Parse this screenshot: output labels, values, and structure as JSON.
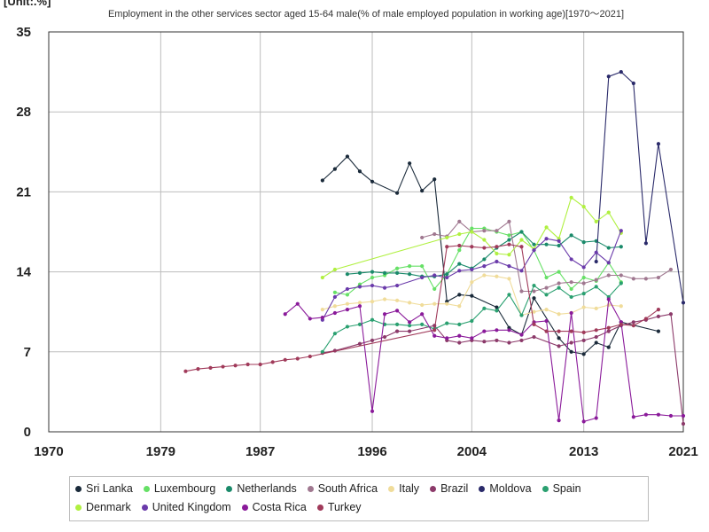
{
  "chart_data": {
    "type": "line",
    "title": "Employment in the other services sector aged 15-64 male(% of male employed population in working age)[1970〜2021]",
    "unit_label": "[Unit:.%]",
    "xlim": [
      1970,
      2021
    ],
    "ylim": [
      0,
      35
    ],
    "x_ticks": [
      "1970",
      "1979",
      "1987",
      "1996",
      "2004",
      "2013",
      "2021"
    ],
    "y_ticks": [
      "0",
      "7",
      "14",
      "21",
      "28",
      "35"
    ],
    "grid": true,
    "legend_position": "bottom",
    "series": [
      {
        "name": "Sri Lanka",
        "color": "#1a2a3a",
        "points": [
          [
            1992,
            22.0
          ],
          [
            1993,
            23.0
          ],
          [
            1994,
            24.1
          ],
          [
            1995,
            22.8
          ],
          [
            1996,
            21.9
          ],
          [
            1998,
            20.9
          ],
          [
            1999,
            23.5
          ],
          [
            2000,
            21.1
          ],
          [
            2001,
            22.1
          ],
          [
            2002,
            11.4
          ],
          [
            2003,
            12.0
          ],
          [
            2004,
            11.9
          ],
          [
            2006,
            10.9
          ],
          [
            2007,
            9.1
          ],
          [
            2008,
            8.5
          ],
          [
            2009,
            11.7
          ],
          [
            2011,
            8.2
          ],
          [
            2012,
            7.0
          ],
          [
            2013,
            6.8
          ],
          [
            2014,
            7.8
          ],
          [
            2015,
            7.4
          ],
          [
            2016,
            9.6
          ],
          [
            2019,
            8.8
          ]
        ]
      },
      {
        "name": "Luxembourg",
        "color": "#66e066",
        "points": [
          [
            1993,
            12.2
          ],
          [
            1994,
            12.0
          ],
          [
            1995,
            12.9
          ],
          [
            1996,
            13.5
          ],
          [
            1997,
            13.7
          ],
          [
            1998,
            14.3
          ],
          [
            1999,
            14.5
          ],
          [
            2000,
            14.5
          ],
          [
            2001,
            12.5
          ],
          [
            2002,
            13.8
          ],
          [
            2003,
            15.9
          ],
          [
            2004,
            17.8
          ],
          [
            2005,
            17.8
          ],
          [
            2006,
            17.5
          ],
          [
            2007,
            17.2
          ],
          [
            2008,
            17.5
          ],
          [
            2009,
            15.9
          ],
          [
            2010,
            13.5
          ],
          [
            2011,
            14.0
          ],
          [
            2012,
            12.5
          ],
          [
            2013,
            13.5
          ],
          [
            2014,
            13.2
          ],
          [
            2015,
            14.8
          ],
          [
            2016,
            13.1
          ]
        ]
      },
      {
        "name": "Netherlands",
        "color": "#1a8a6a",
        "points": [
          [
            1994,
            13.8
          ],
          [
            1995,
            13.9
          ],
          [
            1996,
            14.0
          ],
          [
            1997,
            13.9
          ],
          [
            1998,
            13.9
          ],
          [
            1999,
            13.8
          ],
          [
            2000,
            13.6
          ],
          [
            2001,
            13.6
          ],
          [
            2002,
            13.8
          ],
          [
            2003,
            14.7
          ],
          [
            2004,
            14.3
          ],
          [
            2005,
            15.1
          ],
          [
            2006,
            16.1
          ],
          [
            2007,
            16.8
          ],
          [
            2008,
            17.5
          ],
          [
            2009,
            16.4
          ],
          [
            2010,
            16.4
          ],
          [
            2011,
            16.3
          ],
          [
            2012,
            17.2
          ],
          [
            2013,
            16.6
          ],
          [
            2014,
            16.7
          ],
          [
            2015,
            16.1
          ],
          [
            2016,
            16.2
          ]
        ]
      },
      {
        "name": "South Africa",
        "color": "#a07890",
        "points": [
          [
            2000,
            17.0
          ],
          [
            2001,
            17.3
          ],
          [
            2002,
            17.1
          ],
          [
            2003,
            18.4
          ],
          [
            2004,
            17.5
          ],
          [
            2005,
            17.6
          ],
          [
            2006,
            17.6
          ],
          [
            2007,
            18.4
          ],
          [
            2008,
            12.3
          ],
          [
            2009,
            12.3
          ],
          [
            2010,
            12.6
          ],
          [
            2011,
            13.0
          ],
          [
            2012,
            13.1
          ],
          [
            2013,
            13.0
          ],
          [
            2014,
            13.3
          ],
          [
            2015,
            13.7
          ],
          [
            2016,
            13.7
          ],
          [
            2017,
            13.4
          ],
          [
            2018,
            13.4
          ],
          [
            2019,
            13.5
          ],
          [
            2020,
            14.2
          ]
        ]
      },
      {
        "name": "Italy",
        "color": "#f0dc9a",
        "points": [
          [
            1992,
            10.7
          ],
          [
            1993,
            11.0
          ],
          [
            1994,
            11.2
          ],
          [
            1995,
            11.3
          ],
          [
            1996,
            11.4
          ],
          [
            1997,
            11.6
          ],
          [
            1998,
            11.5
          ],
          [
            1999,
            11.3
          ],
          [
            2000,
            11.1
          ],
          [
            2001,
            11.2
          ],
          [
            2002,
            11.2
          ],
          [
            2003,
            11.0
          ],
          [
            2004,
            13.1
          ],
          [
            2005,
            13.7
          ],
          [
            2006,
            13.6
          ],
          [
            2007,
            13.4
          ],
          [
            2008,
            10.2
          ],
          [
            2009,
            10.5
          ],
          [
            2010,
            10.7
          ],
          [
            2011,
            10.3
          ],
          [
            2012,
            10.4
          ],
          [
            2013,
            10.9
          ],
          [
            2014,
            10.8
          ],
          [
            2015,
            11.1
          ],
          [
            2016,
            11.0
          ]
        ]
      },
      {
        "name": "Brazil",
        "color": "#8c3a6a",
        "points": [
          [
            1992,
            6.9
          ],
          [
            1993,
            7.1
          ],
          [
            1995,
            7.7
          ],
          [
            1996,
            8.0
          ],
          [
            1997,
            8.3
          ],
          [
            1998,
            8.8
          ],
          [
            1999,
            8.8
          ],
          [
            2001,
            9.3
          ],
          [
            2002,
            8.0
          ],
          [
            2003,
            7.8
          ],
          [
            2004,
            8.0
          ],
          [
            2005,
            7.9
          ],
          [
            2006,
            8.0
          ],
          [
            2007,
            7.8
          ],
          [
            2008,
            8.0
          ],
          [
            2009,
            8.3
          ],
          [
            2011,
            7.5
          ],
          [
            2012,
            7.8
          ],
          [
            2013,
            8.0
          ],
          [
            2014,
            8.3
          ],
          [
            2015,
            8.8
          ],
          [
            2016,
            9.3
          ],
          [
            2017,
            9.6
          ],
          [
            2018,
            9.8
          ],
          [
            2019,
            10.1
          ],
          [
            2020,
            10.3
          ],
          [
            2021,
            0.7
          ]
        ]
      },
      {
        "name": "Moldova",
        "color": "#2a2a6a",
        "points": [
          [
            2014,
            14.9
          ],
          [
            2015,
            31.1
          ],
          [
            2016,
            31.5
          ],
          [
            2017,
            30.5
          ],
          [
            2018,
            16.5
          ],
          [
            2019,
            25.2
          ],
          [
            2021,
            11.3
          ]
        ]
      },
      {
        "name": "Spain",
        "color": "#2aa070",
        "points": [
          [
            1992,
            7.0
          ],
          [
            1993,
            8.6
          ],
          [
            1994,
            9.2
          ],
          [
            1995,
            9.4
          ],
          [
            1996,
            9.8
          ],
          [
            1997,
            9.4
          ],
          [
            1998,
            9.4
          ],
          [
            1999,
            9.3
          ],
          [
            2000,
            9.4
          ],
          [
            2001,
            9.0
          ],
          [
            2002,
            9.5
          ],
          [
            2003,
            9.4
          ],
          [
            2004,
            9.7
          ],
          [
            2005,
            10.8
          ],
          [
            2006,
            10.6
          ],
          [
            2007,
            12.0
          ],
          [
            2008,
            10.2
          ],
          [
            2009,
            12.8
          ],
          [
            2010,
            12.0
          ],
          [
            2011,
            12.6
          ],
          [
            2012,
            11.8
          ],
          [
            2013,
            12.1
          ],
          [
            2014,
            12.7
          ],
          [
            2015,
            11.8
          ],
          [
            2016,
            13.0
          ]
        ]
      },
      {
        "name": "Denmark",
        "color": "#b0f040",
        "points": [
          [
            1992,
            13.5
          ],
          [
            1993,
            14.2
          ],
          [
            2002,
            17.0
          ],
          [
            2003,
            17.3
          ],
          [
            2004,
            17.5
          ],
          [
            2005,
            16.8
          ],
          [
            2006,
            15.6
          ],
          [
            2007,
            15.5
          ],
          [
            2008,
            16.8
          ],
          [
            2009,
            16.0
          ],
          [
            2010,
            17.9
          ],
          [
            2011,
            16.9
          ],
          [
            2012,
            20.5
          ],
          [
            2013,
            19.7
          ],
          [
            2014,
            18.4
          ],
          [
            2015,
            19.2
          ],
          [
            2016,
            17.4
          ]
        ]
      },
      {
        "name": "United Kingdom",
        "color": "#6a3aaa",
        "points": [
          [
            1992,
            9.8
          ],
          [
            1993,
            11.8
          ],
          [
            1994,
            12.5
          ],
          [
            1995,
            12.7
          ],
          [
            1996,
            12.8
          ],
          [
            1997,
            12.6
          ],
          [
            1998,
            12.8
          ],
          [
            2000,
            13.5
          ],
          [
            2001,
            13.7
          ],
          [
            2002,
            13.5
          ],
          [
            2003,
            14.1
          ],
          [
            2004,
            14.2
          ],
          [
            2005,
            14.5
          ],
          [
            2006,
            14.9
          ],
          [
            2007,
            14.5
          ],
          [
            2008,
            14.1
          ],
          [
            2009,
            15.9
          ],
          [
            2010,
            16.9
          ],
          [
            2011,
            16.7
          ],
          [
            2012,
            15.1
          ],
          [
            2013,
            14.4
          ],
          [
            2014,
            15.7
          ],
          [
            2015,
            14.8
          ],
          [
            2016,
            17.6
          ]
        ]
      },
      {
        "name": "Costa Rica",
        "color": "#8a1a9a",
        "points": [
          [
            1989,
            10.3
          ],
          [
            1990,
            11.2
          ],
          [
            1991,
            9.9
          ],
          [
            1992,
            10.0
          ],
          [
            1993,
            10.4
          ],
          [
            1994,
            10.7
          ],
          [
            1995,
            11.0
          ],
          [
            1996,
            1.8
          ],
          [
            1997,
            10.3
          ],
          [
            1998,
            10.6
          ],
          [
            1999,
            9.6
          ],
          [
            2000,
            10.3
          ],
          [
            2001,
            8.4
          ],
          [
            2002,
            8.2
          ],
          [
            2003,
            8.4
          ],
          [
            2004,
            8.2
          ],
          [
            2005,
            8.8
          ],
          [
            2006,
            8.9
          ],
          [
            2007,
            8.9
          ],
          [
            2008,
            8.5
          ],
          [
            2009,
            9.6
          ],
          [
            2010,
            9.7
          ],
          [
            2011,
            1.0
          ],
          [
            2012,
            10.4
          ],
          [
            2013,
            0.9
          ],
          [
            2014,
            1.2
          ],
          [
            2015,
            11.6
          ],
          [
            2016,
            9.6
          ],
          [
            2017,
            1.3
          ],
          [
            2018,
            1.5
          ],
          [
            2019,
            1.5
          ],
          [
            2020,
            1.4
          ],
          [
            2021,
            1.4
          ]
        ]
      },
      {
        "name": "Turkey",
        "color": "#a03a5a",
        "points": [
          [
            1981,
            5.3
          ],
          [
            1982,
            5.5
          ],
          [
            1983,
            5.6
          ],
          [
            1984,
            5.7
          ],
          [
            1985,
            5.8
          ],
          [
            1986,
            5.9
          ],
          [
            1987,
            5.9
          ],
          [
            1988,
            6.1
          ],
          [
            1989,
            6.3
          ],
          [
            1990,
            6.4
          ],
          [
            1991,
            6.6
          ],
          [
            2001,
            8.9
          ],
          [
            2002,
            16.2
          ],
          [
            2003,
            16.3
          ],
          [
            2004,
            16.2
          ],
          [
            2005,
            16.1
          ],
          [
            2006,
            16.2
          ],
          [
            2007,
            16.4
          ],
          [
            2008,
            16.2
          ],
          [
            2009,
            9.4
          ],
          [
            2010,
            8.8
          ],
          [
            2011,
            8.8
          ],
          [
            2012,
            8.8
          ],
          [
            2013,
            8.7
          ],
          [
            2014,
            8.9
          ],
          [
            2015,
            9.1
          ],
          [
            2016,
            9.4
          ],
          [
            2017,
            9.3
          ],
          [
            2018,
            9.9
          ],
          [
            2019,
            10.7
          ]
        ]
      }
    ]
  }
}
